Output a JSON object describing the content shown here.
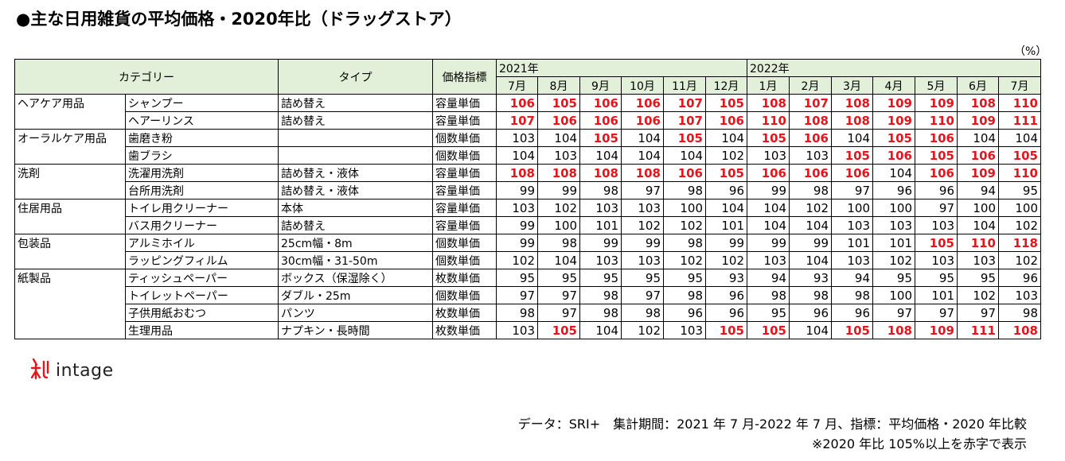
{
  "title": "●主な日用雑貨の平均価格・2020年比（ドラッグストア）",
  "unit": "（%）",
  "header": {
    "category": "カテゴリー",
    "type": "タイプ",
    "index": "価格指標",
    "year1": "2021年",
    "year2": "2022年",
    "months": [
      "7月",
      "8月",
      "9月",
      "10月",
      "11月",
      "12月",
      "1月",
      "2月",
      "3月",
      "4月",
      "5月",
      "6月",
      "7月"
    ]
  },
  "highlight_threshold": 105,
  "highlight_color": "#e8141b",
  "header_bg": "#e2efd9",
  "chart_data": {
    "type": "table",
    "columns": [
      "2021年7月",
      "2021年8月",
      "2021年9月",
      "2021年10月",
      "2021年11月",
      "2021年12月",
      "2022年1月",
      "2022年2月",
      "2022年3月",
      "2022年4月",
      "2022年5月",
      "2022年6月",
      "2022年7月"
    ],
    "rows": [
      {
        "category": "ヘアケア用品",
        "item": "シャンプー",
        "type": "詰め替え",
        "index": "容量単価",
        "values": [
          106,
          105,
          106,
          106,
          107,
          105,
          108,
          107,
          108,
          109,
          109,
          108,
          110
        ]
      },
      {
        "category": "",
        "item": "ヘアーリンス",
        "type": "詰め替え",
        "index": "容量単価",
        "values": [
          107,
          106,
          106,
          106,
          107,
          106,
          110,
          108,
          108,
          109,
          110,
          109,
          111
        ]
      },
      {
        "category": "オーラルケア用品",
        "item": "歯磨き粉",
        "type": "",
        "index": "個数単価",
        "values": [
          103,
          104,
          105,
          104,
          105,
          104,
          105,
          106,
          104,
          105,
          106,
          104,
          104
        ]
      },
      {
        "category": "",
        "item": "歯ブラシ",
        "type": "",
        "index": "個数単価",
        "values": [
          104,
          103,
          104,
          104,
          104,
          102,
          103,
          103,
          105,
          106,
          105,
          106,
          105
        ]
      },
      {
        "category": "洗剤",
        "item": "洗濯用洗剤",
        "type": "詰め替え・液体",
        "index": "容量単価",
        "values": [
          108,
          108,
          108,
          108,
          106,
          105,
          106,
          106,
          106,
          104,
          106,
          109,
          110
        ]
      },
      {
        "category": "",
        "item": "台所用洗剤",
        "type": "詰め替え・液体",
        "index": "容量単価",
        "values": [
          99,
          99,
          98,
          97,
          98,
          96,
          99,
          98,
          97,
          96,
          96,
          94,
          95
        ]
      },
      {
        "category": "住居用品",
        "item": "トイレ用クリーナー",
        "type": "本体",
        "index": "容量単価",
        "values": [
          103,
          102,
          103,
          103,
          100,
          104,
          104,
          102,
          100,
          100,
          97,
          100,
          100
        ]
      },
      {
        "category": "",
        "item": "バス用クリーナー",
        "type": "詰め替え",
        "index": "容量単価",
        "values": [
          99,
          100,
          101,
          102,
          102,
          101,
          104,
          104,
          103,
          103,
          103,
          104,
          102
        ]
      },
      {
        "category": "包装品",
        "item": "アルミホイル",
        "type": "25cm幅・8m",
        "index": "個数単価",
        "values": [
          99,
          98,
          99,
          99,
          98,
          99,
          99,
          99,
          101,
          101,
          105,
          110,
          118
        ]
      },
      {
        "category": "",
        "item": "ラッピングフィルム",
        "type": "30cm幅・31-50m",
        "index": "個数単価",
        "values": [
          102,
          104,
          103,
          103,
          102,
          102,
          103,
          104,
          103,
          102,
          103,
          103,
          102
        ]
      },
      {
        "category": "紙製品",
        "item": "ティッシュペーパー",
        "type": "ボックス（保湿除く）",
        "index": "枚数単価",
        "values": [
          95,
          95,
          95,
          95,
          95,
          93,
          94,
          93,
          94,
          95,
          95,
          95,
          96
        ]
      },
      {
        "category": "",
        "item": "トイレットペーパー",
        "type": "ダブル・25m",
        "index": "個数単価",
        "values": [
          97,
          97,
          98,
          97,
          98,
          96,
          98,
          98,
          98,
          100,
          101,
          102,
          103
        ]
      },
      {
        "category": "",
        "item": "子供用紙おむつ",
        "type": "パンツ",
        "index": "枚数単価",
        "values": [
          98,
          97,
          98,
          98,
          96,
          96,
          95,
          96,
          96,
          97,
          97,
          97,
          98
        ]
      },
      {
        "category": "",
        "item": "生理用品",
        "type": "ナプキン・長時間",
        "index": "枚数単価",
        "values": [
          103,
          105,
          104,
          102,
          103,
          105,
          105,
          104,
          105,
          108,
          109,
          111,
          108
        ]
      }
    ]
  },
  "logo": {
    "word": "intage",
    "icon": "intage-logo-icon"
  },
  "notes": {
    "line1": "データ：SRI+　集計期間：2021 年 7 月-2022 年 7 月、指標：平均価格・2020 年比較",
    "line2": "※2020 年比 105%以上を赤字で表示"
  }
}
